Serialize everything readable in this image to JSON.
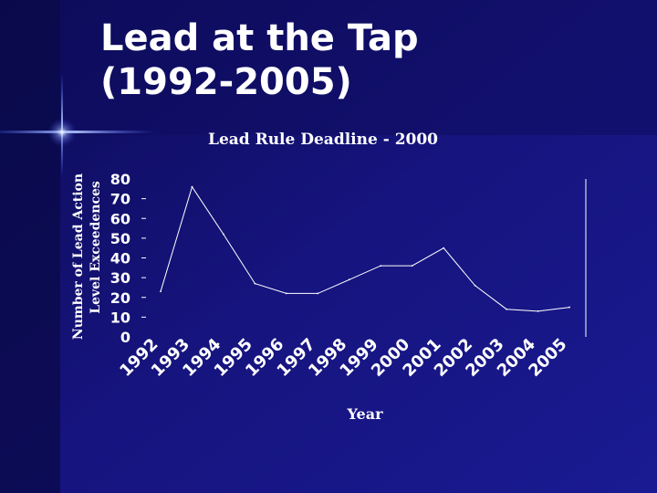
{
  "slide": {
    "title_line1": "Lead at the Tap",
    "title_line2": "(1992-2005)"
  },
  "colors": {
    "background": "#14127a",
    "text": "#ffffff",
    "line": "#ffffff"
  },
  "chart_data": {
    "type": "line",
    "title": "Lead Rule Deadline - 2000",
    "xlabel": "Year",
    "ylabel_line1": "Number of Lead Action",
    "ylabel_line2": "Level Exceedences",
    "categories": [
      "1992",
      "1993",
      "1994",
      "1995",
      "1996",
      "1997",
      "1998",
      "1999",
      "2000",
      "2001",
      "2002",
      "2003",
      "2004",
      "2005"
    ],
    "series": [
      {
        "values": [
          23,
          76,
          52,
          27,
          22,
          22,
          29,
          36,
          36,
          45,
          26,
          14,
          13,
          15
        ]
      }
    ],
    "ylim": [
      0,
      80
    ],
    "yticks": [
      0,
      10,
      20,
      30,
      40,
      50,
      60,
      70,
      80
    ],
    "grid": false
  }
}
